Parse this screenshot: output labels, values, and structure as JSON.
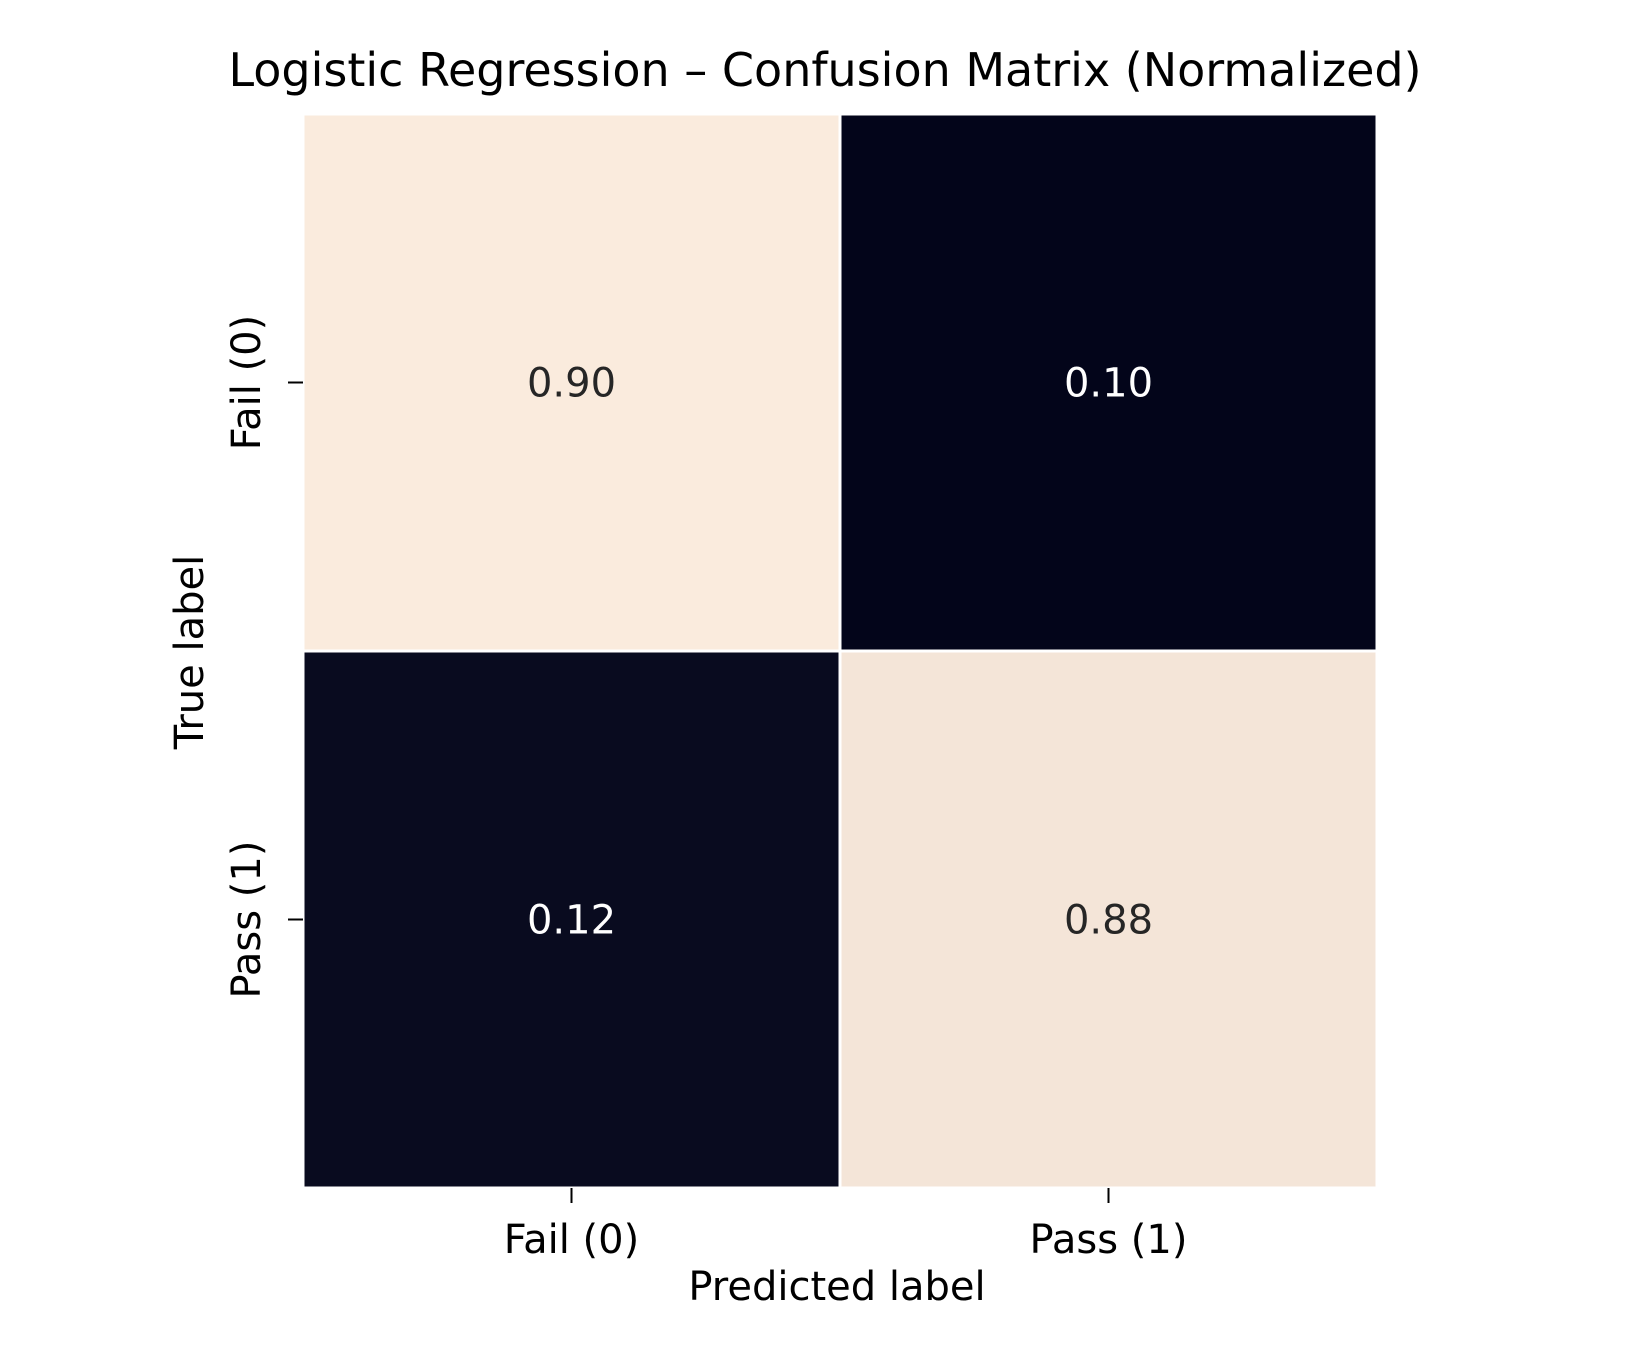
{
  "chart_data": {
    "type": "heatmap",
    "title": "Logistic Regression – Confusion Matrix (Normalized)",
    "xlabel": "Predicted label",
    "ylabel": "True label",
    "x_categories": [
      "Fail (0)",
      "Pass (1)"
    ],
    "y_categories": [
      "Fail (0)",
      "Pass (1)"
    ],
    "values": [
      [
        0.9,
        0.1
      ],
      [
        0.12,
        0.88
      ]
    ],
    "value_labels": [
      [
        "0.90",
        "0.10"
      ],
      [
        "0.12",
        "0.88"
      ]
    ],
    "colorbar": false,
    "colors": {
      "low": "#03051a",
      "high": "#faebdd",
      "text_dark": "#262626",
      "text_light": "#ffffff"
    }
  }
}
